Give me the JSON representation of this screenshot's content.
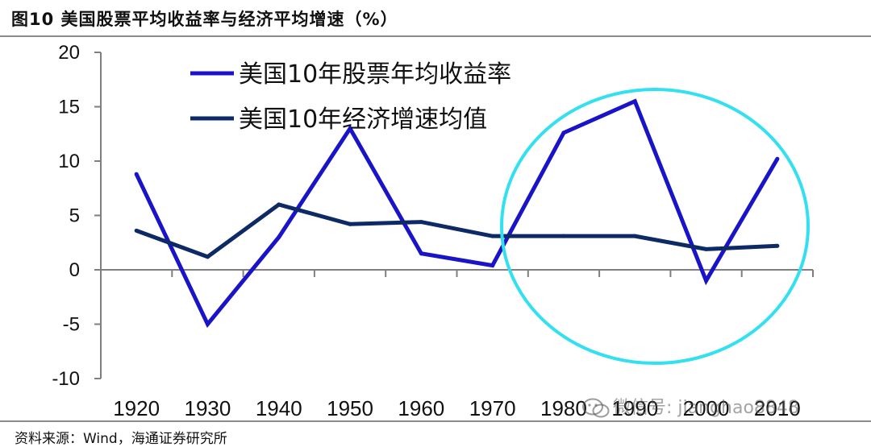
{
  "figure": {
    "title": "图10 美国股票平均收益率与经济平均增速（%）",
    "source": "资料来源：Wind，海通证券研究所",
    "watermark": "微信号: jianghao8848"
  },
  "colors": {
    "stock_line": "#1a14c8",
    "gdp_line": "#0e2a66",
    "highlight_ellipse": "#33e0f0",
    "axis": "#7f7f7f",
    "text": "#111111"
  },
  "icons": [
    "wechat-icon"
  ],
  "chart_data": {
    "type": "line",
    "x": [
      "1920",
      "1930",
      "1940",
      "1950",
      "1960",
      "1970",
      "1980",
      "1990",
      "2000",
      "2010"
    ],
    "series": [
      {
        "name": "美国10年股票年均收益率",
        "values": [
          8.8,
          -5.0,
          3.0,
          13.0,
          1.5,
          0.4,
          12.6,
          15.5,
          -1.0,
          10.2
        ]
      },
      {
        "name": "美国10年经济增速均值",
        "values": [
          3.6,
          1.2,
          6.0,
          4.2,
          4.4,
          3.1,
          3.1,
          3.1,
          1.9,
          2.2
        ]
      }
    ],
    "ylim": [
      -10,
      20
    ],
    "yticks": [
      -10,
      -5,
      0,
      5,
      10,
      15,
      20
    ],
    "legend_position": "top-center",
    "grid": false,
    "annotation": "highlight ellipse over 1980–2010"
  }
}
